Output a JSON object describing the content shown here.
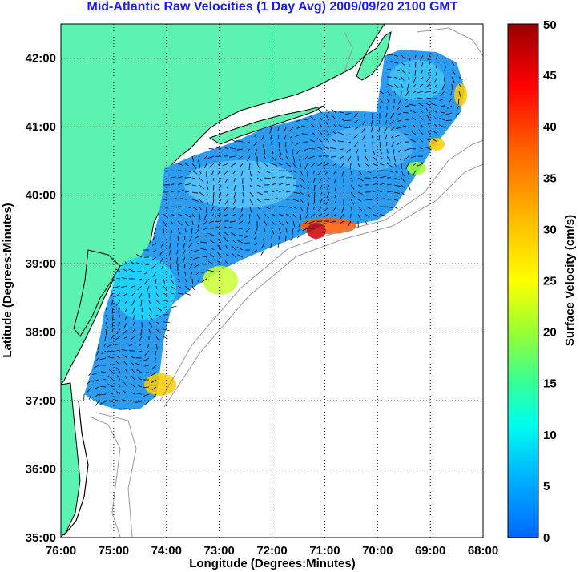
{
  "title": "Mid-Atlantic Raw Velocities (1 Day Avg) 2009/09/20 2100 GMT",
  "x_axis": {
    "label": "Longitude (Degrees:Minutes)",
    "ticks": [
      "76:00",
      "75:00",
      "74:00",
      "73:00",
      "72:00",
      "71:00",
      "70:00",
      "69:00",
      "68:00"
    ]
  },
  "y_axis": {
    "label": "Latitude (Degrees:Minutes)",
    "ticks": [
      "42:00",
      "41:00",
      "40:00",
      "39:00",
      "38:00",
      "37:00",
      "36:00",
      "35:00"
    ]
  },
  "colorbar": {
    "label": "Surface Velocity (cm/s)",
    "ticks": [
      "50",
      "45",
      "40",
      "35",
      "30",
      "25",
      "20",
      "15",
      "10",
      "5",
      "0"
    ],
    "colors": [
      "#0066ff",
      "#00ccff",
      "#00ffee",
      "#33ff99",
      "#99ff33",
      "#ffff00",
      "#ffbb00",
      "#ff6600",
      "#ff0000",
      "#990000"
    ]
  },
  "colors": {
    "land": "#5cf2b0",
    "grid": "#000000",
    "coast": "#000000",
    "bathymetry": "#9a9a9a"
  }
}
